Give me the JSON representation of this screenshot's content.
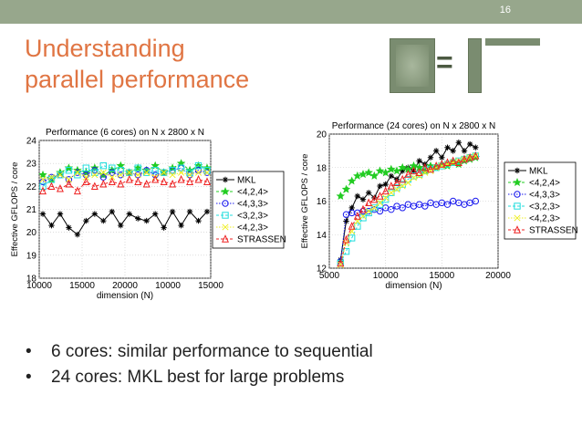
{
  "slide": {
    "number": "16",
    "title_lines": [
      "Understanding",
      "parallel performance"
    ],
    "equals": "=",
    "bullets": [
      "6 cores: similar performance to sequential",
      "24 cores: MKL best for large problems"
    ]
  },
  "chart_data": [
    {
      "type": "line",
      "title": "Performance (6 cores) on N x 2800 x N",
      "xlabel": "dimension (N)",
      "ylabel": "Effective GFLOPS / core",
      "ylim": [
        18,
        24
      ],
      "y_ticks": [
        "18",
        "19",
        "20",
        "21",
        "22",
        "23",
        "24"
      ],
      "x_ticks": [
        "10000",
        "15000",
        "20000",
        "10000",
        "15000"
      ],
      "legend": "right-outside",
      "grid": true,
      "x": [
        1,
        2,
        3,
        4,
        5,
        6,
        7,
        8,
        9,
        10,
        11,
        12,
        13,
        14,
        15,
        16,
        17,
        18,
        19,
        20
      ],
      "series": [
        {
          "name": "MKL",
          "marker": "asterisk",
          "color": "#000000",
          "values": [
            20.8,
            20.3,
            20.8,
            20.2,
            19.9,
            20.5,
            20.8,
            20.5,
            20.9,
            20.3,
            20.8,
            20.6,
            20.5,
            20.8,
            20.2,
            20.9,
            20.3,
            20.9,
            20.5,
            20.9
          ]
        },
        {
          "name": "<4,2,4>",
          "marker": "star",
          "color": "#22cc22",
          "values": [
            22.5,
            22.3,
            22.6,
            22.8,
            22.7,
            22.6,
            22.8,
            22.5,
            22.7,
            22.9,
            22.6,
            22.8,
            22.7,
            22.9,
            22.6,
            22.8,
            23.0,
            22.7,
            22.9,
            22.8
          ]
        },
        {
          "name": "<4,3,3>",
          "marker": "circle",
          "color": "#1a1aee",
          "values": [
            22.2,
            22.4,
            22.5,
            22.3,
            22.6,
            22.5,
            22.7,
            22.4,
            22.6,
            22.5,
            22.6,
            22.5,
            22.7,
            22.5,
            22.6,
            22.7,
            22.8,
            22.5,
            22.7,
            22.6
          ]
        },
        {
          "name": "<3,2,3>",
          "marker": "square",
          "color": "#22dddd",
          "values": [
            22.0,
            22.3,
            22.5,
            22.7,
            22.5,
            22.8,
            22.6,
            22.9,
            22.8,
            22.7,
            22.6,
            22.8,
            22.6,
            22.7,
            22.6,
            22.7,
            22.8,
            22.6,
            22.9,
            22.7
          ]
        },
        {
          "name": "<4,2,3>",
          "marker": "x",
          "color": "#eeee22",
          "values": [
            22.3,
            22.4,
            22.5,
            22.3,
            22.6,
            22.4,
            22.5,
            22.6,
            22.4,
            22.5,
            22.6,
            22.5,
            22.6,
            22.4,
            22.6,
            22.5,
            22.6,
            22.5,
            22.6,
            22.6
          ]
        },
        {
          "name": "STRASSEN",
          "marker": "triangle",
          "color": "#ee2222",
          "values": [
            21.8,
            22.0,
            21.9,
            22.1,
            21.8,
            22.2,
            22.0,
            22.1,
            22.2,
            22.1,
            22.3,
            22.2,
            22.1,
            22.3,
            22.2,
            22.1,
            22.3,
            22.2,
            22.3,
            22.2
          ]
        }
      ]
    },
    {
      "type": "line",
      "title": "Performance (24 cores) on N x 2800 x N",
      "xlabel": "dimension (N)",
      "ylabel": "Effective GFLOPS / core",
      "xlim": [
        5000,
        20000
      ],
      "ylim": [
        12,
        20
      ],
      "y_ticks": [
        "12",
        "14",
        "16",
        "18",
        "20"
      ],
      "x_ticks": [
        "5000",
        "10000",
        "15000",
        "20000"
      ],
      "legend": "right-outside",
      "grid": true,
      "x": [
        6000,
        6500,
        7000,
        7500,
        8000,
        8500,
        9000,
        9500,
        10000,
        10500,
        11000,
        11500,
        12000,
        12500,
        13000,
        13500,
        14000,
        14500,
        15000,
        15500,
        16000,
        16500,
        17000,
        17500,
        18000
      ],
      "series": [
        {
          "name": "MKL",
          "marker": "asterisk",
          "color": "#000000",
          "values": [
            12.5,
            14.8,
            15.6,
            16.3,
            16.1,
            16.5,
            16.2,
            16.9,
            17.0,
            17.5,
            17.3,
            17.8,
            18.0,
            17.8,
            18.4,
            18.2,
            18.6,
            19.0,
            18.6,
            19.2,
            19.0,
            19.5,
            19.0,
            19.4,
            19.2
          ]
        },
        {
          "name": "<4,2,4>",
          "marker": "star",
          "color": "#22cc22",
          "values": [
            16.3,
            16.7,
            17.2,
            17.5,
            17.6,
            17.7,
            17.5,
            17.8,
            17.7,
            17.9,
            17.8,
            18.0,
            17.9,
            18.1,
            18.0,
            17.8,
            18.1,
            18.0,
            18.2,
            18.1,
            18.3,
            18.2,
            18.4,
            18.5,
            18.6
          ]
        },
        {
          "name": "<4,3,3>",
          "marker": "circle",
          "color": "#1a1aee",
          "values": [
            12.4,
            15.2,
            15.3,
            15.3,
            15.4,
            15.4,
            15.5,
            15.4,
            15.6,
            15.5,
            15.7,
            15.6,
            15.8,
            15.7,
            15.8,
            15.7,
            15.9,
            15.8,
            15.9,
            15.8,
            16.0,
            15.9,
            15.8,
            15.9,
            16.0
          ]
        },
        {
          "name": "<3,2,3>",
          "marker": "square",
          "color": "#22dddd",
          "values": [
            12.3,
            13.0,
            13.8,
            14.5,
            15.0,
            15.3,
            15.6,
            15.8,
            16.1,
            16.5,
            16.8,
            17.0,
            17.3,
            17.5,
            17.6,
            17.8,
            17.9,
            18.0,
            18.1,
            18.2,
            18.3,
            18.4,
            18.5,
            18.6,
            18.7
          ]
        },
        {
          "name": "<4,2,3>",
          "marker": "x",
          "color": "#eeee22",
          "values": [
            12.2,
            13.5,
            14.2,
            14.8,
            15.1,
            15.4,
            15.6,
            15.9,
            16.2,
            16.5,
            16.7,
            16.9,
            17.1,
            17.4,
            17.5,
            17.7,
            17.8,
            18.0,
            18.1,
            18.2,
            18.3,
            18.4,
            18.5,
            18.6,
            18.7
          ]
        },
        {
          "name": "STRASSEN",
          "marker": "triangle",
          "color": "#ee2222",
          "values": [
            12.3,
            13.7,
            14.5,
            15.1,
            15.5,
            15.9,
            16.1,
            16.3,
            16.6,
            16.9,
            17.1,
            17.3,
            17.6,
            17.8,
            17.7,
            18.0,
            17.9,
            18.1,
            18.2,
            18.3,
            18.4,
            18.3,
            18.5,
            18.6,
            18.7
          ]
        }
      ]
    }
  ]
}
